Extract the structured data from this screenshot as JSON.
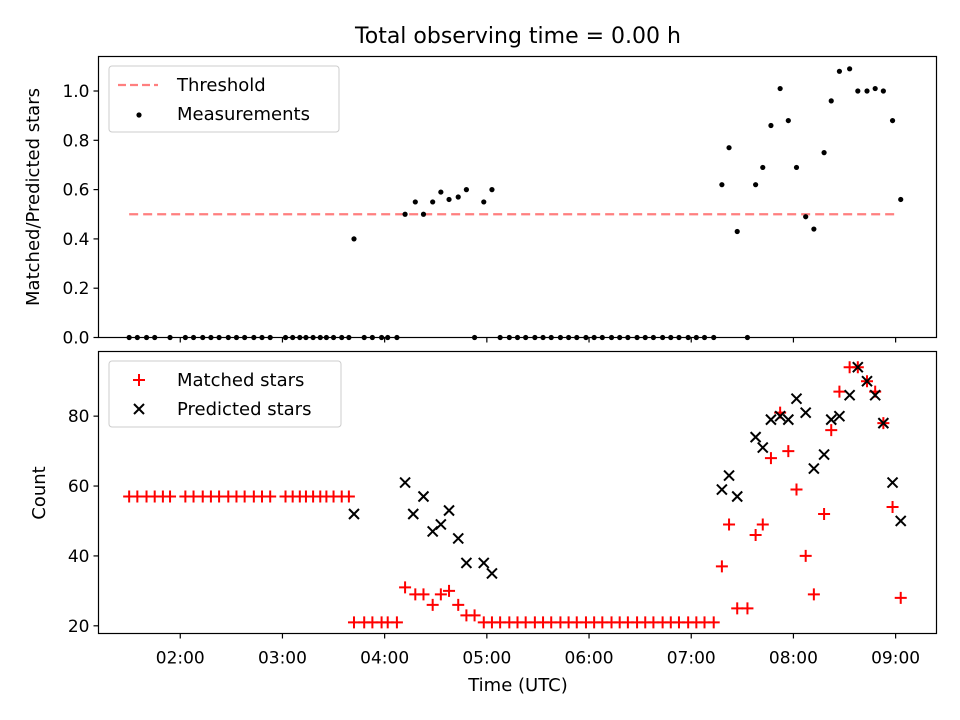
{
  "title": "Total observing time = 0.00 h",
  "chart_data": [
    {
      "type": "scatter",
      "ylabel": "Matched/Predicted stars",
      "ylim": [
        0,
        1.14
      ],
      "xlim": [
        1.2,
        9.4
      ],
      "yticks": [
        {
          "v": 0.0,
          "label": "0.0"
        },
        {
          "v": 0.2,
          "label": "0.2"
        },
        {
          "v": 0.4,
          "label": "0.4"
        },
        {
          "v": 0.6,
          "label": "0.6"
        },
        {
          "v": 0.8,
          "label": "0.8"
        },
        {
          "v": 1.0,
          "label": "1.0"
        }
      ],
      "legend_position": "upper-left",
      "threshold": {
        "name": "Threshold",
        "value": 0.5,
        "x": [
          1.5,
          9.0
        ],
        "color": "#ff7f7f"
      },
      "series": [
        {
          "name": "Measurements",
          "color": "#000000",
          "marker": "dot",
          "points": [
            [
              1.5,
              0
            ],
            [
              1.58,
              0
            ],
            [
              1.67,
              0
            ],
            [
              1.75,
              0
            ],
            [
              1.9,
              0
            ],
            [
              2.05,
              0
            ],
            [
              2.13,
              0
            ],
            [
              2.22,
              0
            ],
            [
              2.3,
              0
            ],
            [
              2.38,
              0
            ],
            [
              2.47,
              0
            ],
            [
              2.55,
              0
            ],
            [
              2.63,
              0
            ],
            [
              2.72,
              0
            ],
            [
              2.8,
              0
            ],
            [
              2.88,
              0
            ],
            [
              3.03,
              0
            ],
            [
              3.1,
              0
            ],
            [
              3.17,
              0
            ],
            [
              3.23,
              0
            ],
            [
              3.3,
              0
            ],
            [
              3.37,
              0
            ],
            [
              3.43,
              0
            ],
            [
              3.5,
              0
            ],
            [
              3.58,
              0
            ],
            [
              3.65,
              0
            ],
            [
              3.7,
              0.4
            ],
            [
              3.8,
              0
            ],
            [
              3.88,
              0
            ],
            [
              3.97,
              0
            ],
            [
              4.03,
              0
            ],
            [
              4.12,
              0
            ],
            [
              4.2,
              0.5
            ],
            [
              4.3,
              0.55
            ],
            [
              4.38,
              0.5
            ],
            [
              4.47,
              0.55
            ],
            [
              4.55,
              0.59
            ],
            [
              4.63,
              0.56
            ],
            [
              4.72,
              0.57
            ],
            [
              4.8,
              0.6
            ],
            [
              4.88,
              0
            ],
            [
              4.97,
              0.55
            ],
            [
              5.05,
              0.6
            ],
            [
              5.13,
              0
            ],
            [
              5.22,
              0
            ],
            [
              5.3,
              0
            ],
            [
              5.38,
              0
            ],
            [
              5.47,
              0
            ],
            [
              5.55,
              0
            ],
            [
              5.63,
              0
            ],
            [
              5.72,
              0
            ],
            [
              5.8,
              0
            ],
            [
              5.88,
              0
            ],
            [
              5.97,
              0
            ],
            [
              6.05,
              0
            ],
            [
              6.13,
              0
            ],
            [
              6.22,
              0
            ],
            [
              6.3,
              0
            ],
            [
              6.38,
              0
            ],
            [
              6.47,
              0
            ],
            [
              6.55,
              0
            ],
            [
              6.63,
              0
            ],
            [
              6.72,
              0
            ],
            [
              6.8,
              0
            ],
            [
              6.88,
              0
            ],
            [
              6.97,
              0
            ],
            [
              7.05,
              0
            ],
            [
              7.13,
              0
            ],
            [
              7.22,
              0
            ],
            [
              7.3,
              0.62
            ],
            [
              7.37,
              0.77
            ],
            [
              7.45,
              0.43
            ],
            [
              7.55,
              0
            ],
            [
              7.63,
              0.62
            ],
            [
              7.7,
              0.69
            ],
            [
              7.78,
              0.86
            ],
            [
              7.87,
              1.01
            ],
            [
              7.95,
              0.88
            ],
            [
              8.03,
              0.69
            ],
            [
              8.12,
              0.49
            ],
            [
              8.2,
              0.44
            ],
            [
              8.3,
              0.75
            ],
            [
              8.37,
              0.96
            ],
            [
              8.45,
              1.08
            ],
            [
              8.55,
              1.09
            ],
            [
              8.63,
              1.0
            ],
            [
              8.72,
              1.0
            ],
            [
              8.8,
              1.01
            ],
            [
              8.88,
              1.0
            ],
            [
              8.97,
              0.88
            ],
            [
              9.05,
              0.56
            ]
          ]
        }
      ]
    },
    {
      "type": "scatter",
      "xlabel": "Time (UTC)",
      "ylabel": "Count",
      "ylim": [
        17.8,
        98.5
      ],
      "xlim": [
        1.2,
        9.4
      ],
      "yticks": [
        {
          "v": 20,
          "label": "20"
        },
        {
          "v": 40,
          "label": "40"
        },
        {
          "v": 60,
          "label": "60"
        },
        {
          "v": 80,
          "label": "80"
        }
      ],
      "xticks": [
        {
          "v": 2,
          "label": "02:00"
        },
        {
          "v": 3,
          "label": "03:00"
        },
        {
          "v": 4,
          "label": "04:00"
        },
        {
          "v": 5,
          "label": "05:00"
        },
        {
          "v": 6,
          "label": "06:00"
        },
        {
          "v": 7,
          "label": "07:00"
        },
        {
          "v": 8,
          "label": "08:00"
        },
        {
          "v": 9,
          "label": "09:00"
        }
      ],
      "legend_position": "upper-left",
      "series": [
        {
          "name": "Matched stars",
          "color": "#ff0000",
          "marker": "plus",
          "points": [
            [
              1.5,
              57
            ],
            [
              1.58,
              57
            ],
            [
              1.67,
              57
            ],
            [
              1.75,
              57
            ],
            [
              1.83,
              57
            ],
            [
              1.9,
              57
            ],
            [
              2.05,
              57
            ],
            [
              2.13,
              57
            ],
            [
              2.22,
              57
            ],
            [
              2.3,
              57
            ],
            [
              2.38,
              57
            ],
            [
              2.47,
              57
            ],
            [
              2.55,
              57
            ],
            [
              2.63,
              57
            ],
            [
              2.72,
              57
            ],
            [
              2.8,
              57
            ],
            [
              2.88,
              57
            ],
            [
              3.03,
              57
            ],
            [
              3.1,
              57
            ],
            [
              3.17,
              57
            ],
            [
              3.23,
              57
            ],
            [
              3.3,
              57
            ],
            [
              3.37,
              57
            ],
            [
              3.43,
              57
            ],
            [
              3.5,
              57
            ],
            [
              3.58,
              57
            ],
            [
              3.65,
              57
            ],
            [
              3.7,
              21
            ],
            [
              3.8,
              21
            ],
            [
              3.88,
              21
            ],
            [
              3.97,
              21
            ],
            [
              4.03,
              21
            ],
            [
              4.12,
              21
            ],
            [
              4.2,
              31
            ],
            [
              4.3,
              29
            ],
            [
              4.38,
              29
            ],
            [
              4.47,
              26
            ],
            [
              4.55,
              29
            ],
            [
              4.63,
              30
            ],
            [
              4.72,
              26
            ],
            [
              4.8,
              23
            ],
            [
              4.88,
              23
            ],
            [
              4.97,
              21
            ],
            [
              5.05,
              21
            ],
            [
              5.13,
              21
            ],
            [
              5.22,
              21
            ],
            [
              5.3,
              21
            ],
            [
              5.38,
              21
            ],
            [
              5.47,
              21
            ],
            [
              5.55,
              21
            ],
            [
              5.63,
              21
            ],
            [
              5.72,
              21
            ],
            [
              5.8,
              21
            ],
            [
              5.88,
              21
            ],
            [
              5.97,
              21
            ],
            [
              6.05,
              21
            ],
            [
              6.13,
              21
            ],
            [
              6.22,
              21
            ],
            [
              6.3,
              21
            ],
            [
              6.38,
              21
            ],
            [
              6.47,
              21
            ],
            [
              6.55,
              21
            ],
            [
              6.63,
              21
            ],
            [
              6.72,
              21
            ],
            [
              6.8,
              21
            ],
            [
              6.88,
              21
            ],
            [
              6.97,
              21
            ],
            [
              7.05,
              21
            ],
            [
              7.13,
              21
            ],
            [
              7.22,
              21
            ],
            [
              7.3,
              37
            ],
            [
              7.37,
              49
            ],
            [
              7.45,
              25
            ],
            [
              7.55,
              25
            ],
            [
              7.63,
              46
            ],
            [
              7.7,
              49
            ],
            [
              7.78,
              68
            ],
            [
              7.87,
              81
            ],
            [
              7.95,
              70
            ],
            [
              8.03,
              59
            ],
            [
              8.12,
              40
            ],
            [
              8.2,
              29
            ],
            [
              8.3,
              52
            ],
            [
              8.37,
              76
            ],
            [
              8.45,
              87
            ],
            [
              8.55,
              94
            ],
            [
              8.63,
              94
            ],
            [
              8.72,
              90
            ],
            [
              8.8,
              87
            ],
            [
              8.88,
              78
            ],
            [
              8.97,
              54
            ],
            [
              9.05,
              28
            ]
          ]
        },
        {
          "name": "Predicted stars",
          "color": "#000000",
          "marker": "x",
          "points": [
            [
              3.7,
              52
            ],
            [
              4.2,
              61
            ],
            [
              4.28,
              52
            ],
            [
              4.38,
              57
            ],
            [
              4.47,
              47
            ],
            [
              4.55,
              49
            ],
            [
              4.63,
              53
            ],
            [
              4.72,
              45
            ],
            [
              4.8,
              38
            ],
            [
              4.97,
              38
            ],
            [
              5.05,
              35
            ],
            [
              7.3,
              59
            ],
            [
              7.37,
              63
            ],
            [
              7.45,
              57
            ],
            [
              7.63,
              74
            ],
            [
              7.7,
              71
            ],
            [
              7.78,
              79
            ],
            [
              7.87,
              80
            ],
            [
              7.95,
              79
            ],
            [
              8.03,
              85
            ],
            [
              8.12,
              81
            ],
            [
              8.2,
              65
            ],
            [
              8.3,
              69
            ],
            [
              8.37,
              79
            ],
            [
              8.45,
              80
            ],
            [
              8.55,
              86
            ],
            [
              8.63,
              94
            ],
            [
              8.72,
              90
            ],
            [
              8.8,
              86
            ],
            [
              8.88,
              78
            ],
            [
              8.97,
              61
            ],
            [
              9.05,
              50
            ]
          ]
        }
      ]
    }
  ]
}
